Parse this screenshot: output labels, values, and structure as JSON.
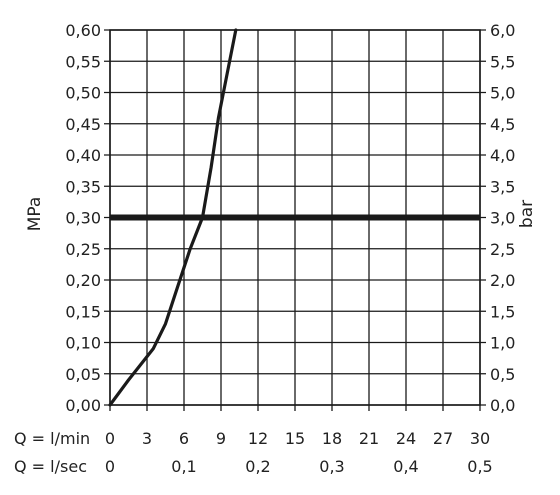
{
  "chart_data": {
    "type": "line",
    "ylabel_left": "MPa",
    "ylabel_right": "bar",
    "x_row_labels": [
      "Q = l/min",
      "Q = l/sec"
    ],
    "xlim": [
      0,
      30
    ],
    "ylim": [
      0,
      0.6
    ],
    "x_ticks_lmin": [
      "0",
      "3",
      "6",
      "9",
      "12",
      "15",
      "18",
      "21",
      "24",
      "27",
      "30"
    ],
    "x_ticks_lsec": [
      {
        "value": 0,
        "label": "0"
      },
      {
        "value": 6,
        "label": "0,1"
      },
      {
        "value": 12,
        "label": "0,2"
      },
      {
        "value": 18,
        "label": "0,3"
      },
      {
        "value": 24,
        "label": "0,4"
      },
      {
        "value": 30,
        "label": "0,5"
      }
    ],
    "y_ticks_left": [
      "0,00",
      "0,05",
      "0,10",
      "0,15",
      "0,20",
      "0,25",
      "0,30",
      "0,35",
      "0,40",
      "0,45",
      "0,50",
      "0,55",
      "0,60"
    ],
    "y_ticks_right": [
      "0,0",
      "0,5",
      "1,0",
      "1,5",
      "2,0",
      "2,5",
      "3,0",
      "3,5",
      "4,0",
      "4,5",
      "5,0",
      "5,5",
      "6,0"
    ],
    "grid": true,
    "series": [
      {
        "x": [
          0,
          1.5,
          3.5,
          4.5,
          5.5,
          6.5,
          7.5,
          8.2,
          8.8,
          9.4,
          10.2
        ],
        "y": [
          0,
          0.04,
          0.09,
          0.13,
          0.19,
          0.25,
          0.3,
          0.38,
          0.46,
          0.52,
          0.6
        ],
        "color": "#1a1a1a"
      }
    ],
    "reference_lines": [
      {
        "y": 0.3,
        "color": "#1a1a1a"
      }
    ]
  }
}
